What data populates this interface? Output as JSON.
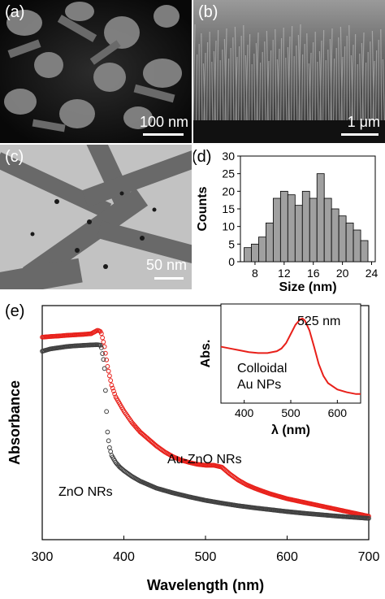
{
  "panels": {
    "a": {
      "label": "(a)",
      "scale_text": "100 nm"
    },
    "b": {
      "label": "(b)",
      "scale_text": "1 μm"
    },
    "c": {
      "label": "(c)",
      "scale_text": "50 nm"
    },
    "d": {
      "label": "(d)"
    },
    "e": {
      "label": "(e)"
    }
  },
  "chart_data": [
    {
      "panel": "d",
      "type": "bar",
      "xlabel": "Size (nm)",
      "ylabel": "Counts",
      "xlim": [
        6,
        24.5
      ],
      "ylim": [
        0,
        30
      ],
      "xticks": [
        8,
        12,
        16,
        20,
        24
      ],
      "yticks": [
        0,
        5,
        10,
        15,
        20,
        25,
        30
      ],
      "bar_color": "#a0a0a0",
      "bins": [
        7,
        8,
        9,
        10,
        11,
        12,
        13,
        14,
        15,
        16,
        17,
        18,
        19,
        20,
        21,
        22,
        23
      ],
      "values": [
        4,
        5,
        7,
        11,
        18,
        20,
        19,
        16,
        20,
        18,
        25,
        18,
        15,
        13,
        11,
        9,
        6
      ]
    },
    {
      "panel": "e",
      "type": "scatter",
      "xlabel": "Wavelength (nm)",
      "ylabel": "Absorbance",
      "xlim": [
        300,
        700
      ],
      "xticks": [
        300,
        400,
        500,
        600,
        700
      ],
      "yticks_shown": false,
      "series": [
        {
          "name": "Au-ZnO NRs",
          "color": "#e8201a",
          "x": [
            300,
            310,
            320,
            330,
            340,
            350,
            360,
            368,
            372,
            376,
            380,
            385,
            390,
            400,
            410,
            420,
            430,
            440,
            450,
            460,
            470,
            480,
            490,
            500,
            510,
            520,
            530,
            540,
            550,
            560,
            570,
            580,
            590,
            600,
            620,
            640,
            660,
            680,
            700
          ],
          "y": [
            0.865,
            0.868,
            0.87,
            0.873,
            0.875,
            0.877,
            0.88,
            0.895,
            0.888,
            0.83,
            0.74,
            0.66,
            0.61,
            0.55,
            0.5,
            0.46,
            0.43,
            0.4,
            0.375,
            0.355,
            0.34,
            0.33,
            0.322,
            0.318,
            0.318,
            0.31,
            0.28,
            0.255,
            0.235,
            0.22,
            0.207,
            0.195,
            0.185,
            0.175,
            0.16,
            0.145,
            0.13,
            0.115,
            0.1
          ]
        },
        {
          "name": "ZnO NRs",
          "color": "#404040",
          "x": [
            300,
            310,
            320,
            330,
            340,
            350,
            360,
            368,
            372,
            376,
            378,
            380,
            382,
            385,
            390,
            395,
            400,
            410,
            420,
            440,
            460,
            480,
            500,
            520,
            540,
            560,
            580,
            600,
            620,
            640,
            660,
            680,
            700
          ],
          "y": [
            0.805,
            0.815,
            0.82,
            0.825,
            0.828,
            0.83,
            0.832,
            0.833,
            0.83,
            0.75,
            0.6,
            0.46,
            0.4,
            0.36,
            0.33,
            0.31,
            0.295,
            0.27,
            0.25,
            0.22,
            0.2,
            0.183,
            0.168,
            0.156,
            0.145,
            0.136,
            0.128,
            0.12,
            0.113,
            0.107,
            0.101,
            0.096,
            0.091
          ]
        }
      ],
      "annotations": [
        "Au-ZnO NRs",
        "ZnO NRs"
      ]
    },
    {
      "panel": "e-inset",
      "type": "line",
      "xlabel": "λ (nm)",
      "ylabel": "Abs.",
      "xlim": [
        350,
        650
      ],
      "xticks": [
        400,
        500,
        600
      ],
      "series": [
        {
          "name": "Colloidal Au NPs",
          "color": "#e8201a",
          "x": [
            350,
            370,
            390,
            410,
            430,
            450,
            470,
            480,
            490,
            500,
            510,
            520,
            525,
            530,
            540,
            550,
            560,
            570,
            580,
            600,
            620,
            640,
            650
          ],
          "y": [
            0.62,
            0.6,
            0.58,
            0.56,
            0.55,
            0.55,
            0.57,
            0.6,
            0.66,
            0.76,
            0.86,
            0.92,
            0.93,
            0.91,
            0.8,
            0.62,
            0.43,
            0.3,
            0.22,
            0.15,
            0.12,
            0.1,
            0.1
          ]
        }
      ],
      "annotations": [
        "525 nm",
        "Colloidal",
        "Au NPs"
      ]
    }
  ]
}
